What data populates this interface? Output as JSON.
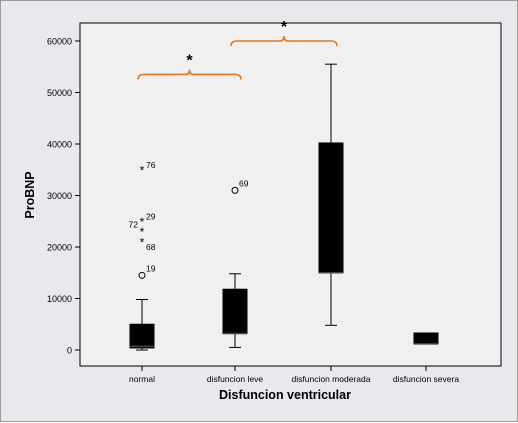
{
  "chart_data": {
    "type": "boxplot",
    "xlabel": "Disfuncion ventricular",
    "ylabel": "ProBNP",
    "ylim": [
      -2000,
      62000
    ],
    "yticks": [
      0,
      10000,
      20000,
      30000,
      40000,
      50000,
      60000
    ],
    "ytick_labels": [
      "0",
      "10000",
      "20000",
      "30000",
      "40000",
      "50000",
      "60000"
    ],
    "categories": [
      "normal",
      "disfuncion leve",
      "disfuncion moderada",
      "disfuncion severa"
    ],
    "boxes": [
      {
        "category": "normal",
        "min": 0,
        "q1": 400,
        "median": 700,
        "q3": 5000,
        "max": 9800
      },
      {
        "category": "disfuncion leve",
        "min": 500,
        "q1": 3200,
        "median": 3200,
        "q3": 11800,
        "max": 14800
      },
      {
        "category": "disfuncion moderada",
        "min": 4800,
        "q1": 15000,
        "median": 15000,
        "q3": 40200,
        "max": 55500
      },
      {
        "category": "disfuncion severa",
        "min": 1200,
        "q1": 1200,
        "median": 1200,
        "q3": 3300,
        "max": 3300
      }
    ],
    "outliers": [
      {
        "category": "normal",
        "value": 35000,
        "marker": "star",
        "label": "76"
      },
      {
        "category": "normal",
        "value": 25000,
        "marker": "star",
        "label": "29"
      },
      {
        "category": "normal",
        "value": 23000,
        "marker": "star",
        "label": "72"
      },
      {
        "category": "normal",
        "value": 21000,
        "marker": "star",
        "label": "68"
      },
      {
        "category": "normal",
        "value": 14500,
        "marker": "circle",
        "label": "19"
      },
      {
        "category": "disfuncion leve",
        "value": 31000,
        "marker": "circle",
        "label": "69"
      }
    ],
    "significance": [
      {
        "from": "normal",
        "to": "disfuncion leve",
        "level": 53500,
        "label": "*"
      },
      {
        "from": "disfuncion leve",
        "to": "disfuncion moderada",
        "level": 60000,
        "label": "*"
      }
    ],
    "grid": false,
    "colors": {
      "box": "#000000",
      "plot_bg": "#f0f0f0",
      "panel_bg": "#e8e9ec",
      "bracket": "#e8761e"
    }
  }
}
